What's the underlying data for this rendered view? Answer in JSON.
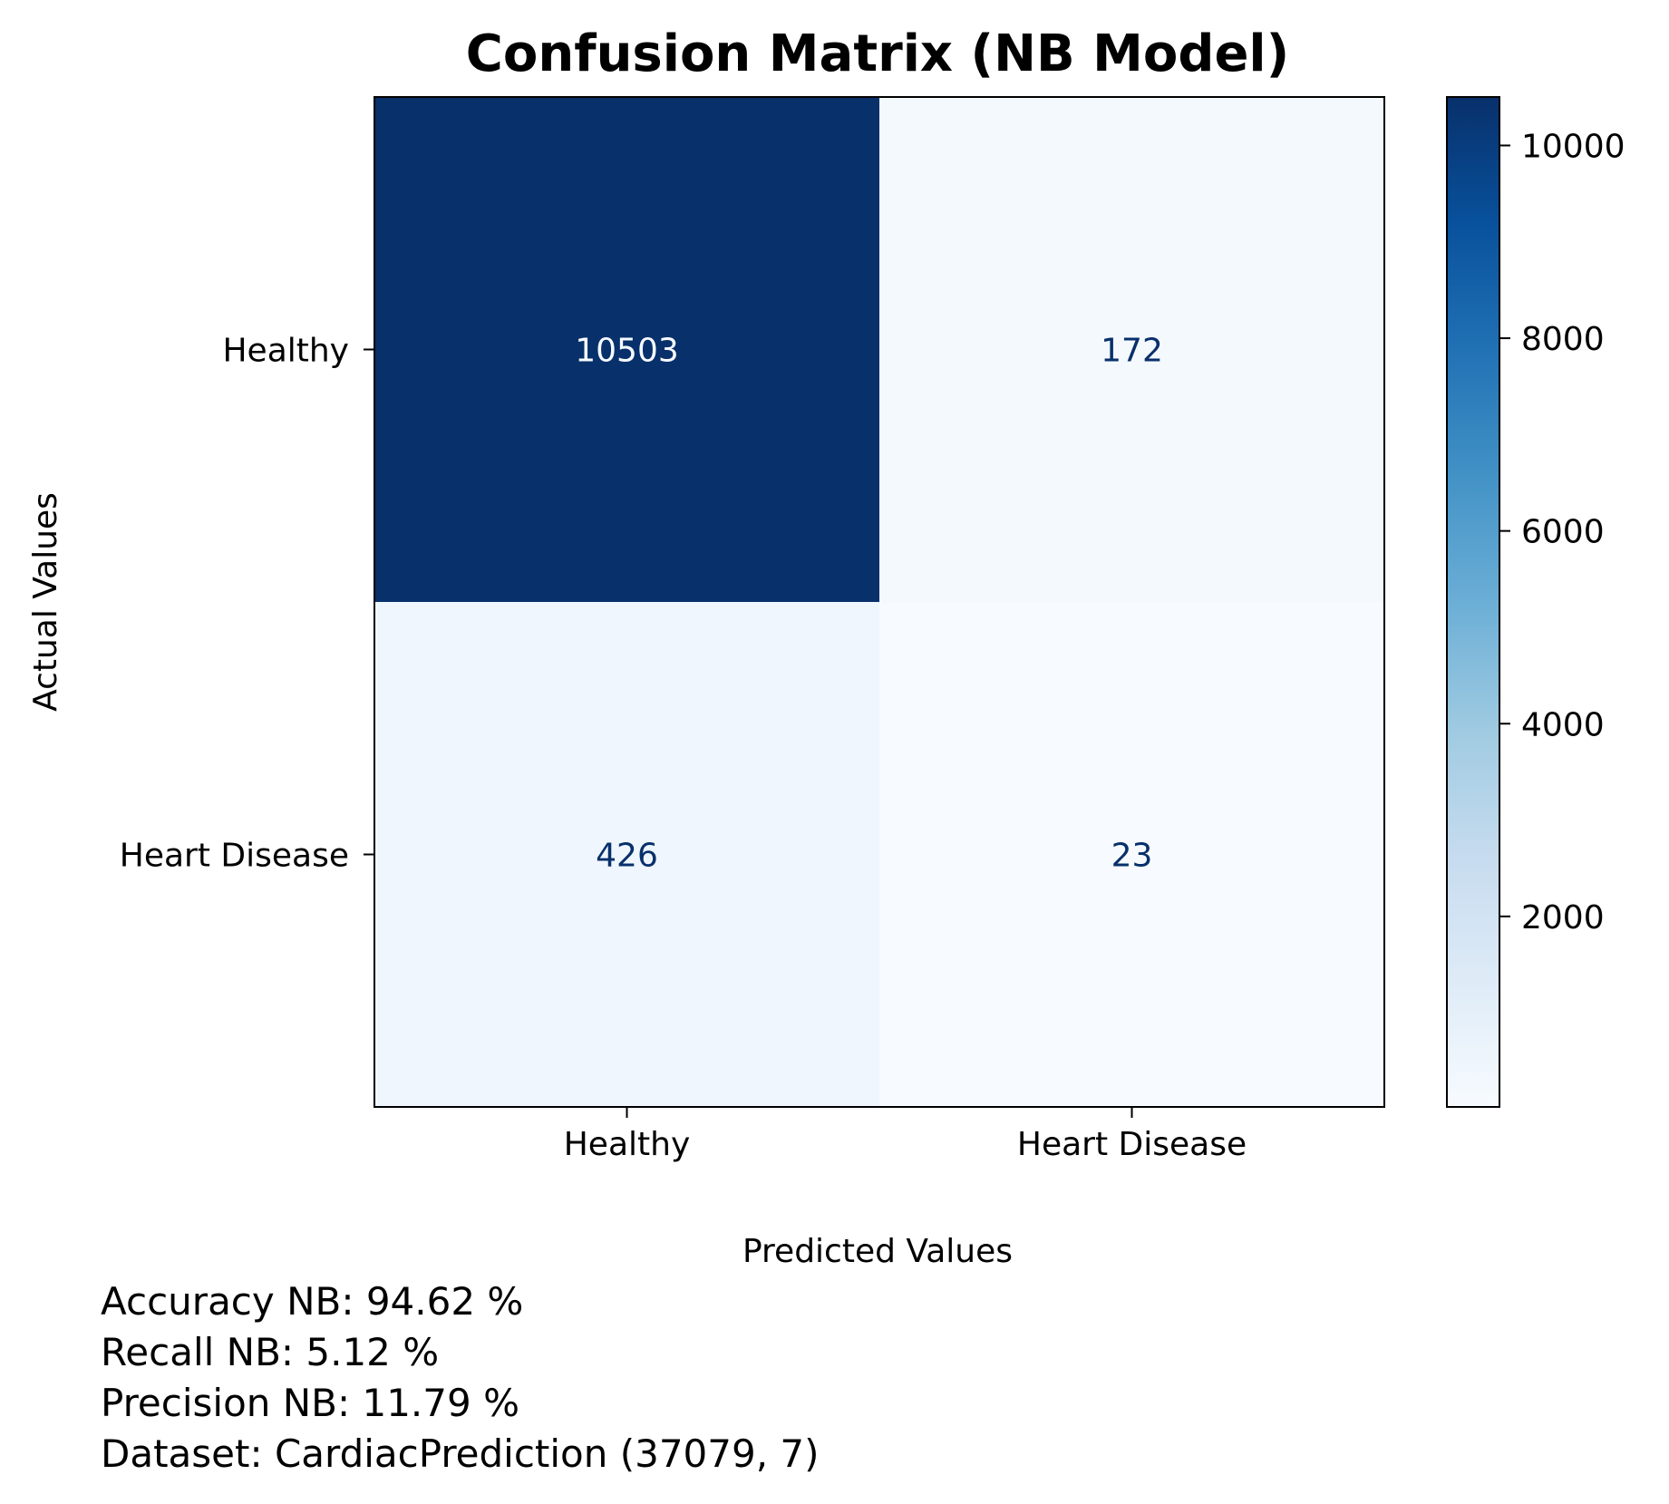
{
  "chart_data": {
    "type": "heatmap",
    "title": "Confusion Matrix (NB Model)",
    "xlabel": "Predicted Values",
    "ylabel": "Actual Values",
    "x_categories": [
      "Healthy",
      "Heart Disease"
    ],
    "y_categories": [
      "Healthy",
      "Heart Disease"
    ],
    "matrix": [
      [
        10503,
        172
      ],
      [
        426,
        23
      ]
    ],
    "colormap": "Blues",
    "colorbar": {
      "range": [
        23,
        10503
      ],
      "ticks": [
        2000,
        4000,
        6000,
        8000,
        10000
      ]
    },
    "grid": false
  },
  "stats": [
    "Accuracy NB: 94.62 %",
    "Recall NB: 5.12 %",
    "Precision NB: 11.79 %",
    "Dataset: CardiacPrediction (37079, 7)"
  ]
}
